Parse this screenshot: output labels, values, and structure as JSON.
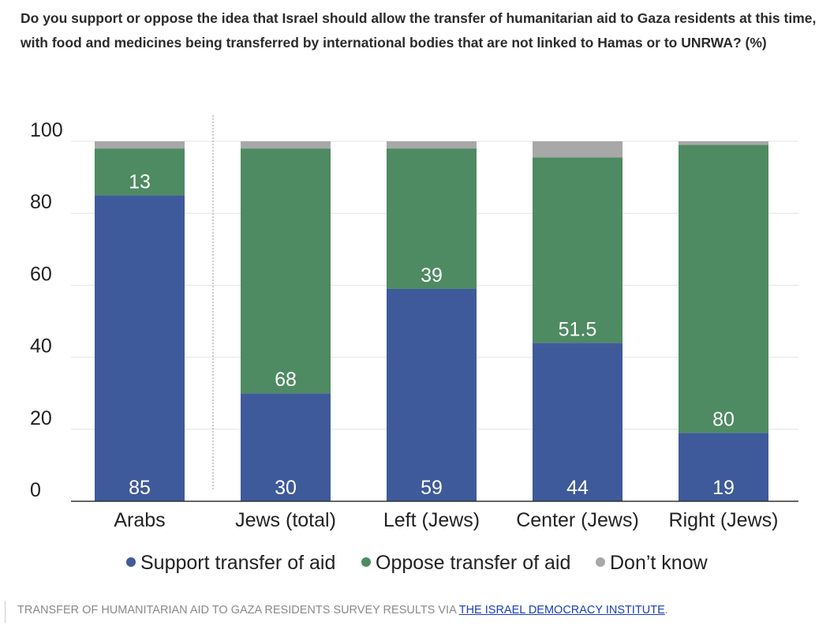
{
  "title": "Do you support or oppose the idea that Israel should allow the transfer of humanitarian aid to Gaza residents at this time, with food and medicines being transferred by international bodies that are not linked to Hamas or to UNRWA? (%)",
  "caption": {
    "text": "TRANSFER OF HUMANITARIAN AID TO GAZA RESIDENTS SURVEY RESULTS VIA ",
    "link": "THE ISRAEL DEMOCRACY INSTITUTE",
    "end": "."
  },
  "colors": {
    "support": "#3e5a9a",
    "oppose": "#4e8a62",
    "dontknow": "#a8a8a8",
    "grid": "#e4e4e4",
    "axis": "#333333"
  },
  "chart_data": {
    "type": "bar",
    "stacked": true,
    "categories": [
      "Arabs",
      "Jews (total)",
      "Left (Jews)",
      "Center (Jews)",
      "Right (Jews)"
    ],
    "series": [
      {
        "name": "Support transfer of aid",
        "values": [
          85,
          30,
          59,
          44,
          19
        ],
        "color": "#3e5a9a"
      },
      {
        "name": "Oppose transfer of aid",
        "values": [
          13,
          68,
          39,
          51.5,
          80
        ],
        "color": "#4e8a62"
      },
      {
        "name": "Don’t know",
        "values": [
          2,
          2,
          2,
          4.5,
          1
        ],
        "color": "#a8a8a8"
      }
    ],
    "data_labels": {
      "Support transfer of aid": [
        "85",
        "30",
        "59",
        "44",
        "19"
      ],
      "Oppose transfer of aid": [
        "13",
        "68",
        "39",
        "51.5",
        "80"
      ]
    },
    "yticks": [
      0,
      20,
      40,
      60,
      80,
      100
    ],
    "ylim": [
      0,
      100
    ],
    "grid": true,
    "legend": "bottom-center",
    "divider_after_category": "Arabs"
  }
}
